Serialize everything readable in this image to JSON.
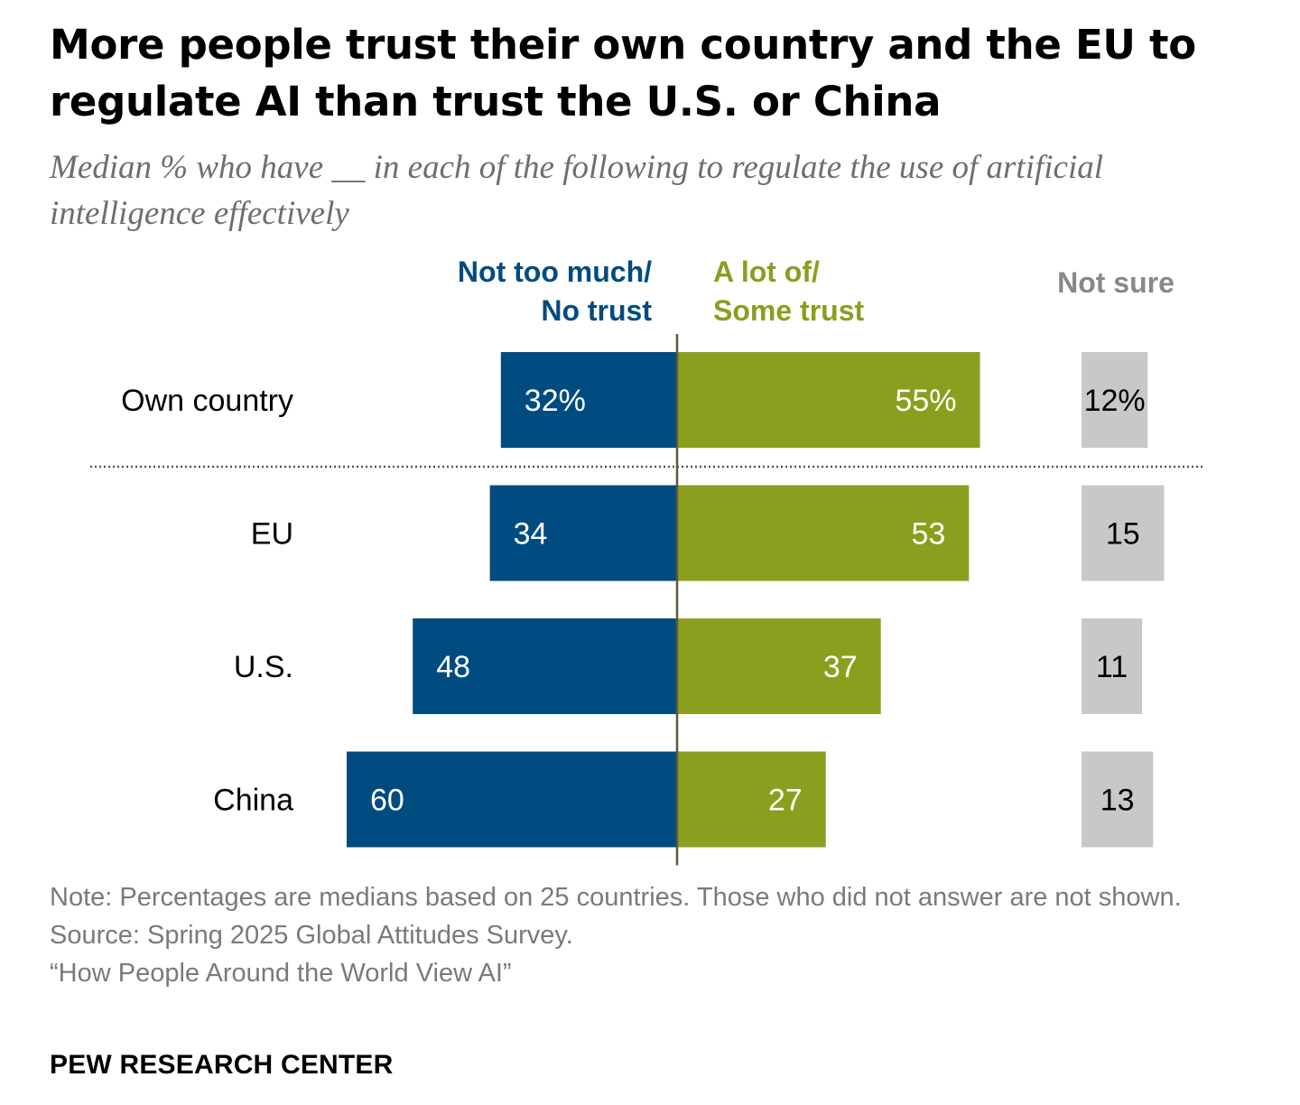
{
  "header": {
    "title": "More people trust their own country and the EU to regulate AI than trust the U.S. or China",
    "subtitle": "Median % who have __ in each of the following to regulate the use of artificial intelligence effectively"
  },
  "chart_data": {
    "type": "bar",
    "orientation": "horizontal-diverging",
    "categories": [
      "Own country",
      "EU",
      "U.S.",
      "China"
    ],
    "series": [
      {
        "name": "Not too much/ No trust",
        "values": [
          32,
          34,
          48,
          60
        ],
        "color": "#004b80",
        "value_labels": [
          "32%",
          "34",
          "48",
          "60"
        ]
      },
      {
        "name": "A lot of/ Some trust",
        "values": [
          55,
          53,
          37,
          27
        ],
        "color": "#8c9e1e",
        "value_labels": [
          "55%",
          "53",
          "37",
          "27"
        ]
      },
      {
        "name": "Not sure",
        "values": [
          12,
          15,
          11,
          13
        ],
        "color": "#c8c8c8",
        "value_labels": [
          "12%",
          "15",
          "11",
          "13"
        ]
      }
    ],
    "legend": {
      "negative": [
        "Not too much/",
        "No trust"
      ],
      "positive": [
        "A lot of/",
        "Some trust"
      ],
      "neutral": [
        "Not sure"
      ]
    },
    "legend_colors": {
      "negative": "#004b80",
      "positive": "#8c9e1e",
      "neutral": "#888888"
    },
    "separator_after": "Own country"
  },
  "footer": {
    "note": "Note: Percentages are medians based on 25 countries. Those who did not answer are not shown.",
    "source": "Source: Spring 2025 Global Attitudes Survey.",
    "report": "“How People Around the World View AI”",
    "brand": "PEW RESEARCH CENTER"
  }
}
